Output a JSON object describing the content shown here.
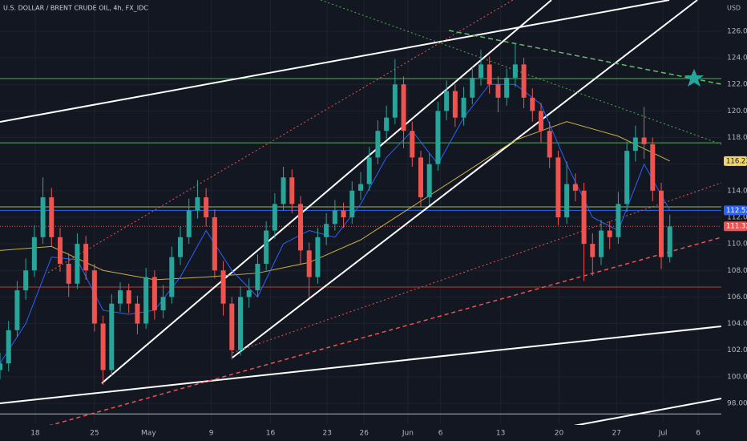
{
  "chart_data": {
    "type": "candlestick",
    "title": "U.S. DOLLAR / BRENT CRUDE OIL, 4h, FX_IDC",
    "y_unit": "USD",
    "x": [
      0,
      1,
      2,
      3,
      4,
      5,
      6,
      7,
      8,
      9,
      10,
      11,
      12,
      13,
      14,
      15,
      16,
      17,
      18,
      19,
      20,
      21,
      22,
      23,
      24,
      25,
      26,
      27,
      28,
      29,
      30,
      31,
      32,
      33,
      34,
      35,
      36,
      37,
      38,
      39,
      40,
      41,
      42,
      43,
      44,
      45,
      46,
      47,
      48,
      49,
      50,
      51,
      52,
      53,
      54,
      55,
      56,
      57,
      58,
      59,
      60,
      61,
      62,
      63,
      64,
      65,
      66,
      67,
      68,
      69,
      70,
      71,
      72,
      73,
      74,
      75,
      76,
      77,
      78
    ],
    "open": [
      100.5,
      101,
      103.5,
      106.5,
      108,
      110.5,
      113.5,
      110.5,
      108.5,
      107,
      110,
      108,
      104,
      100.5,
      105.5,
      106.5,
      105.5,
      104,
      107.5,
      105,
      106,
      109,
      110.5,
      112.5,
      113.5,
      112,
      108,
      105.5,
      102,
      106,
      106.5,
      108.5,
      111,
      113,
      115,
      113,
      109.5,
      107.5,
      110.5,
      111.5,
      112.5,
      112,
      114,
      114.5,
      116.5,
      118.5,
      119.5,
      122,
      118.5,
      116.5,
      113.5,
      116,
      120,
      121.5,
      119.5,
      121,
      122.5,
      123.5,
      122,
      121,
      122.5,
      123.5,
      121,
      120,
      118.5,
      116.5,
      112,
      114.5,
      114,
      110,
      109,
      111,
      110.5,
      113,
      117,
      118,
      117.5,
      114,
      109
    ],
    "high": [
      101.8,
      104.2,
      107.2,
      108.9,
      111.4,
      115,
      114.2,
      111.2,
      109.3,
      110.8,
      110.6,
      108.5,
      104.6,
      106.2,
      107.1,
      107,
      106.1,
      108.2,
      108,
      106.9,
      109.8,
      111.3,
      113.4,
      114.8,
      114.2,
      112.6,
      108.7,
      106,
      106.8,
      107.4,
      109.2,
      111.7,
      113.8,
      115.8,
      115.6,
      113.6,
      110.1,
      111.2,
      112.3,
      113.3,
      113.1,
      114.7,
      115.4,
      117.3,
      119.3,
      120.4,
      123.9,
      122.6,
      119.2,
      117,
      116.8,
      120.7,
      122.3,
      122,
      121.8,
      123.3,
      124.6,
      124.1,
      122.6,
      123.2,
      125.1,
      124,
      121.7,
      120.6,
      119.2,
      117,
      116.2,
      115.3,
      114.6,
      110.8,
      111.8,
      111.7,
      113.9,
      117.7,
      118.9,
      120.3,
      118,
      114.6,
      112.2
    ],
    "low": [
      99.8,
      100.4,
      103,
      105.8,
      107.5,
      110,
      109.8,
      107.9,
      106,
      106.6,
      107.3,
      103.4,
      99.4,
      100.1,
      104.9,
      104.8,
      103.2,
      103.6,
      104.3,
      104.4,
      105.5,
      108.4,
      110,
      111.9,
      111.3,
      107.4,
      104.6,
      101.3,
      101.6,
      105.2,
      106,
      108,
      110.4,
      112.5,
      112.3,
      108.4,
      106,
      107,
      109.9,
      111,
      111.2,
      111.5,
      113.3,
      114,
      116,
      117.9,
      119,
      117.2,
      115.8,
      112.8,
      112.9,
      115.5,
      119.3,
      118.8,
      118.9,
      120.5,
      121.9,
      121.3,
      119.9,
      120.4,
      121.8,
      120.2,
      119.2,
      117.6,
      115.7,
      111.4,
      111.5,
      113.2,
      107.2,
      107.6,
      108.4,
      109.6,
      110,
      112.4,
      116.2,
      116.4,
      113.2,
      108.1,
      108.6
    ],
    "close": [
      101,
      103.5,
      106.5,
      108,
      110.5,
      113.5,
      110.5,
      108.5,
      107,
      110,
      108,
      104,
      100.5,
      105.5,
      106.5,
      105.5,
      104,
      107.5,
      105,
      106,
      109,
      110.5,
      112.5,
      113.5,
      112,
      108,
      105.5,
      102,
      106,
      106.5,
      108.5,
      111,
      113,
      115,
      113,
      109.5,
      107.5,
      110.5,
      111.5,
      112.5,
      112,
      114,
      114.5,
      116.5,
      118.5,
      119.5,
      122,
      118.5,
      116.5,
      113.5,
      116,
      120,
      121.5,
      119.5,
      121,
      122.5,
      123.5,
      122,
      121,
      122.5,
      123.5,
      121,
      120,
      118.5,
      116.5,
      112,
      114.5,
      114,
      110,
      109,
      111,
      110.5,
      113,
      117,
      118,
      117.5,
      114,
      109,
      111.3
    ],
    "up_color": "#26a69a",
    "down_color": "#ef5350",
    "overlays": [
      {
        "color": "#c9b03f",
        "x": [
          0,
          6,
          12,
          18,
          24,
          30,
          36,
          42,
          48,
          54,
          60,
          66,
          72,
          78
        ],
        "values": [
          109.5,
          109.8,
          108,
          107.3,
          107.5,
          107.8,
          108.6,
          110.3,
          112.8,
          115.3,
          117.8,
          119.2,
          118.1,
          116.23
        ]
      },
      {
        "color": "#2962ff",
        "x": [
          0,
          3,
          6,
          9,
          12,
          15,
          18,
          21,
          24,
          27,
          30,
          33,
          36,
          39,
          42,
          45,
          48,
          51,
          54,
          57,
          60,
          63,
          66,
          69,
          72,
          75,
          78
        ],
        "values": [
          101,
          104,
          109,
          108.8,
          105,
          104.7,
          105,
          107.5,
          111,
          108,
          106,
          110,
          111,
          110.5,
          113,
          116.5,
          118.5,
          116,
          119.5,
          122,
          122,
          120.5,
          116,
          112,
          111,
          116,
          112.52
        ]
      }
    ],
    "levels": [
      {
        "value": 122.44,
        "color": "#4caf50",
        "style": "solid"
      },
      {
        "value": 117.6,
        "color": "#4caf50",
        "style": "solid"
      },
      {
        "value": 112.78,
        "color": "#9bbf3a",
        "style": "solid"
      },
      {
        "value": 112.52,
        "color": "#2962ff",
        "style": "solid"
      },
      {
        "value": 111.32,
        "color": "#ef5350",
        "style": "dotted"
      },
      {
        "value": 106.75,
        "color": "#c0392b",
        "style": "solid"
      },
      {
        "value": 97.2,
        "color": "#b2b5be",
        "style": "solid"
      }
    ],
    "price_labels": [
      {
        "value": 116.23,
        "color": "#f0d36b",
        "text_color": "#131722"
      },
      {
        "value": 112.52,
        "color": "#2962ff",
        "text_color": "#ffffff"
      },
      {
        "value": 111.32,
        "color": "#ef5350",
        "text_color": "#ffffff"
      }
    ],
    "xlim": [
      0,
      84
    ],
    "ylim": [
      96.49,
      128.35
    ],
    "xticks": [
      {
        "value": 4.1,
        "label": "18"
      },
      {
        "value": 11,
        "label": "25"
      },
      {
        "value": 17.3,
        "label": "May"
      },
      {
        "value": 24.6,
        "label": "9"
      },
      {
        "value": 31.5,
        "label": "16"
      },
      {
        "value": 38.1,
        "label": "23"
      },
      {
        "value": 42.4,
        "label": "26"
      },
      {
        "value": 47.5,
        "label": "Jun"
      },
      {
        "value": 51.3,
        "label": "6"
      },
      {
        "value": 58.3,
        "label": "13"
      },
      {
        "value": 65.1,
        "label": "20"
      },
      {
        "value": 71.8,
        "label": "27"
      },
      {
        "value": 77.2,
        "label": "Jul"
      },
      {
        "value": 81.3,
        "label": "6"
      }
    ],
    "yticks": [
      {
        "value": 98,
        "label": "98.00"
      },
      {
        "value": 100,
        "label": "100.00"
      },
      {
        "value": 102,
        "label": "102.00"
      },
      {
        "value": 104,
        "label": "104.00"
      },
      {
        "value": 106,
        "label": "106.00"
      },
      {
        "value": 108,
        "label": "108.00"
      },
      {
        "value": 110,
        "label": "110.00"
      },
      {
        "value": 112,
        "label": "112.00"
      },
      {
        "value": 114,
        "label": "114.00"
      },
      {
        "value": 116,
        "label": "116.00"
      },
      {
        "value": 118,
        "label": "118.00"
      },
      {
        "value": 120,
        "label": "120.00"
      },
      {
        "value": 122,
        "label": "122.00"
      },
      {
        "value": 124,
        "label": "124.00"
      },
      {
        "value": 126,
        "label": "126.00"
      }
    ],
    "grid": true
  }
}
